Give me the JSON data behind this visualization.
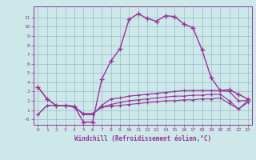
{
  "title": "",
  "xlabel": "Windchill (Refroidissement éolien,°C)",
  "ylabel": "",
  "bg_color": "#cce8e8",
  "grid_color": "#99bbcc",
  "line_color": "#993399",
  "hours": [
    0,
    1,
    2,
    3,
    4,
    5,
    6,
    7,
    8,
    9,
    10,
    11,
    12,
    13,
    14,
    15,
    16,
    17,
    18,
    19,
    20,
    21,
    22,
    23
  ],
  "windchill_main": [
    3.5,
    2.2,
    1.5,
    1.5,
    1.4,
    -0.3,
    -0.3,
    4.3,
    6.3,
    7.6,
    10.8,
    11.4,
    10.9,
    10.6,
    11.2,
    11.1,
    10.3,
    9.9,
    7.5,
    4.5,
    3.1,
    3.2,
    2.7,
    2.2
  ],
  "line2": [
    3.5,
    2.2,
    1.5,
    1.5,
    1.4,
    0.5,
    0.5,
    1.5,
    2.2,
    2.3,
    2.5,
    2.6,
    2.7,
    2.8,
    2.9,
    3.0,
    3.1,
    3.1,
    3.1,
    3.1,
    3.1,
    3.0,
    2.0,
    2.0
  ],
  "line3": [
    0.5,
    1.5,
    1.5,
    1.5,
    1.3,
    0.6,
    0.6,
    1.3,
    1.6,
    1.8,
    2.0,
    2.1,
    2.2,
    2.3,
    2.4,
    2.5,
    2.5,
    2.6,
    2.6,
    2.7,
    2.7,
    2.0,
    1.1,
    2.0
  ],
  "line4": [
    0.5,
    1.5,
    1.5,
    1.5,
    1.3,
    0.6,
    0.6,
    1.3,
    1.4,
    1.5,
    1.6,
    1.7,
    1.8,
    1.9,
    2.0,
    2.0,
    2.1,
    2.1,
    2.2,
    2.2,
    2.3,
    1.7,
    1.1,
    1.8
  ],
  "ylim": [
    -0.6,
    12.2
  ],
  "xlim": [
    -0.5,
    23.5
  ],
  "yticks": [
    0,
    1,
    2,
    3,
    4,
    5,
    6,
    7,
    8,
    9,
    10,
    11
  ],
  "ytick_labels": [
    "-0",
    "1",
    "2",
    "3",
    "4",
    "5",
    "6",
    "7",
    "8",
    "9",
    "10",
    "11"
  ],
  "xticks": [
    0,
    1,
    2,
    3,
    4,
    5,
    6,
    7,
    8,
    9,
    10,
    11,
    12,
    13,
    14,
    15,
    16,
    17,
    18,
    19,
    20,
    21,
    22,
    23
  ]
}
